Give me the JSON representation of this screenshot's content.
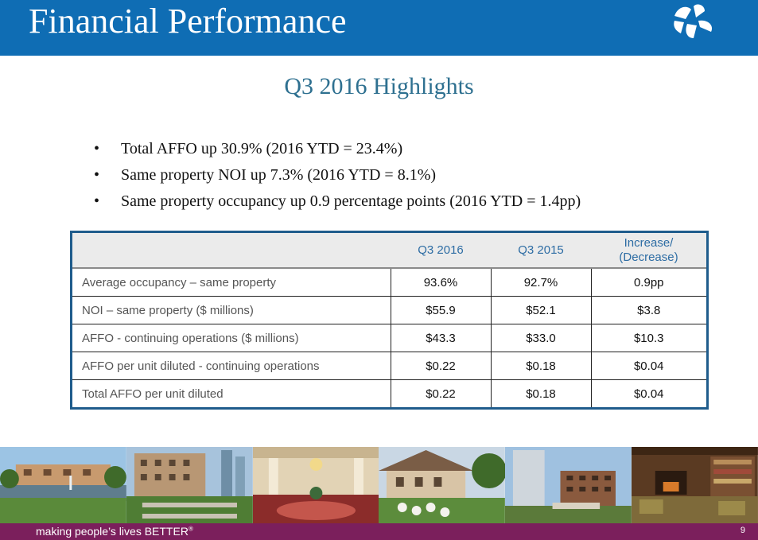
{
  "header": {
    "title": "Financial Performance",
    "bg": "#0f6db4"
  },
  "subtitle": "Q3 2016 Highlights",
  "bullets": [
    "Total AFFO up 30.9% (2016 YTD = 23.4%)",
    "Same property NOI up 7.3% (2016 YTD = 8.1%)",
    "Same property occupancy up 0.9 percentage points (2016 YTD = 1.4pp)"
  ],
  "table": {
    "columns": [
      "",
      "Q3 2016",
      "Q3 2015",
      "Increase/ (Decrease)"
    ],
    "rows": [
      {
        "label": "Average occupancy – same property",
        "q3_2016": "93.6%",
        "q3_2015": "92.7%",
        "change": "0.9pp"
      },
      {
        "label": "NOI – same property ($ millions)",
        "q3_2016": "$55.9",
        "q3_2015": "$52.1",
        "change": "$3.8"
      },
      {
        "label": "AFFO - continuing operations ($ millions)",
        "q3_2016": "$43.3",
        "q3_2015": "$33.0",
        "change": "$10.3"
      },
      {
        "label": "AFFO per unit diluted - continuing operations",
        "q3_2016": "$0.22",
        "q3_2015": "$0.18",
        "change": "$0.04"
      },
      {
        "label": "Total AFFO per unit diluted",
        "q3_2016": "$0.22",
        "q3_2015": "$0.18",
        "change": "$0.04"
      }
    ]
  },
  "photos": [
    "resort-lake-photo",
    "courtyard-garden-photo",
    "grand-lobby-photo",
    "residence-garden-photo",
    "highrise-building-photo",
    "library-lounge-photo"
  ],
  "footer": {
    "tagline": "making people’s lives BETTER",
    "tm": "®",
    "page": "9",
    "bg": "#7b1f5c"
  }
}
